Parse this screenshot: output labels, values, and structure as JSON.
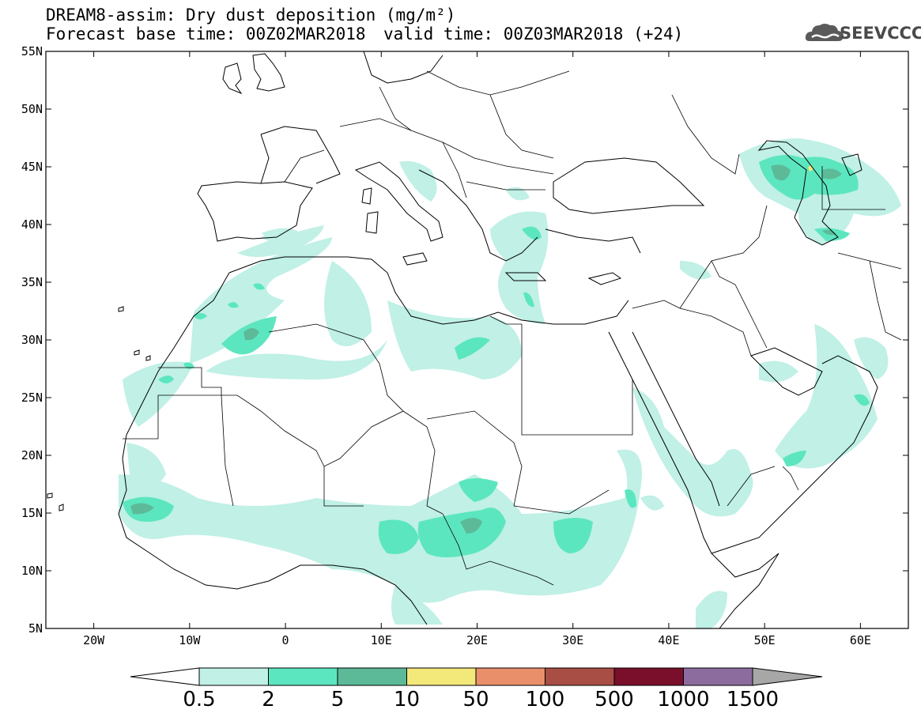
{
  "header": {
    "title": "DREAM8-assim: Dry dust deposition (mg/m²)",
    "base_time": "Forecast base time: 00Z02MAR2018",
    "valid_time": "valid time: 00Z03MAR2018 (+24)"
  },
  "logo": {
    "text": "SEEVCCC",
    "icon": "cloud-logo-icon"
  },
  "axes": {
    "lat_labels": [
      "55N",
      "50N",
      "45N",
      "40N",
      "35N",
      "30N",
      "25N",
      "20N",
      "15N",
      "10N",
      "5N"
    ],
    "lat_values": [
      55,
      50,
      45,
      40,
      35,
      30,
      25,
      20,
      15,
      10,
      5
    ],
    "lon_labels": [
      "20W",
      "10W",
      "0",
      "10E",
      "20E",
      "30E",
      "40E",
      "50E",
      "60E"
    ],
    "lon_values": [
      -20,
      -10,
      0,
      10,
      20,
      30,
      40,
      50,
      60
    ],
    "lon_range": [
      -25,
      65
    ],
    "lat_range": [
      5,
      55
    ]
  },
  "colorbar": {
    "labels": [
      "0.5",
      "2",
      "5",
      "10",
      "50",
      "100",
      "500",
      "1000",
      "1500"
    ],
    "colors": [
      "#c0f0e6",
      "#5ce6bf",
      "#5dba98",
      "#f3e87a",
      "#e98f6a",
      "#a84e44",
      "#7a0f2c",
      "#8c6c9e",
      "#a7a7a7"
    ],
    "under_color": "#ffffff",
    "over_color": "#a7a7a7"
  },
  "colors": {
    "level1": "#c0f0e6",
    "level2": "#5ce6bf",
    "level3": "#5dba98",
    "level4": "#f3e87a"
  }
}
